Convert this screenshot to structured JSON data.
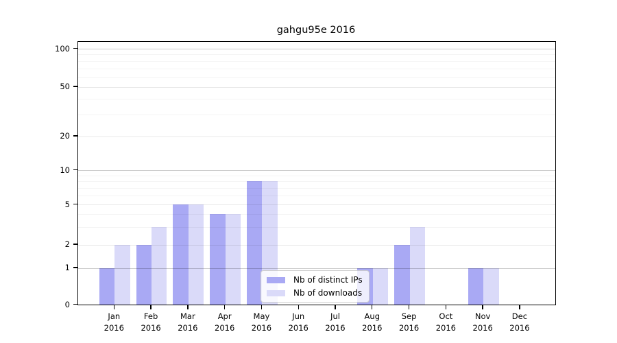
{
  "chart_data": {
    "type": "bar",
    "title": "gahgu95e 2016",
    "categories": [
      "Jan 2016",
      "Feb 2016",
      "Mar 2016",
      "Apr 2016",
      "May 2016",
      "Jun 2016",
      "Jul 2016",
      "Aug 2016",
      "Sep 2016",
      "Oct 2016",
      "Nov 2016",
      "Dec 2016"
    ],
    "series": [
      {
        "name": "Nb of distinct IPs",
        "color": "#a9a9f4",
        "values": [
          1,
          2,
          5,
          4,
          8,
          0,
          0,
          1,
          2,
          0,
          1,
          0
        ]
      },
      {
        "name": "Nb of downloads",
        "color": "#dadaf9",
        "values": [
          2,
          3,
          5,
          4,
          8,
          0,
          0,
          1,
          3,
          0,
          1,
          0
        ]
      }
    ],
    "y_axis": {
      "scale": "log1p",
      "ticks": [
        0,
        1,
        2,
        5,
        10,
        20,
        50,
        100
      ],
      "minor_gridlines": [
        3,
        4,
        6,
        7,
        8,
        9,
        30,
        40,
        60,
        70,
        80,
        90
      ],
      "range": [
        0,
        115
      ]
    },
    "x_axis": {
      "tick_line_2": "2016"
    },
    "grid": true,
    "legend_position": "bottom-center"
  }
}
